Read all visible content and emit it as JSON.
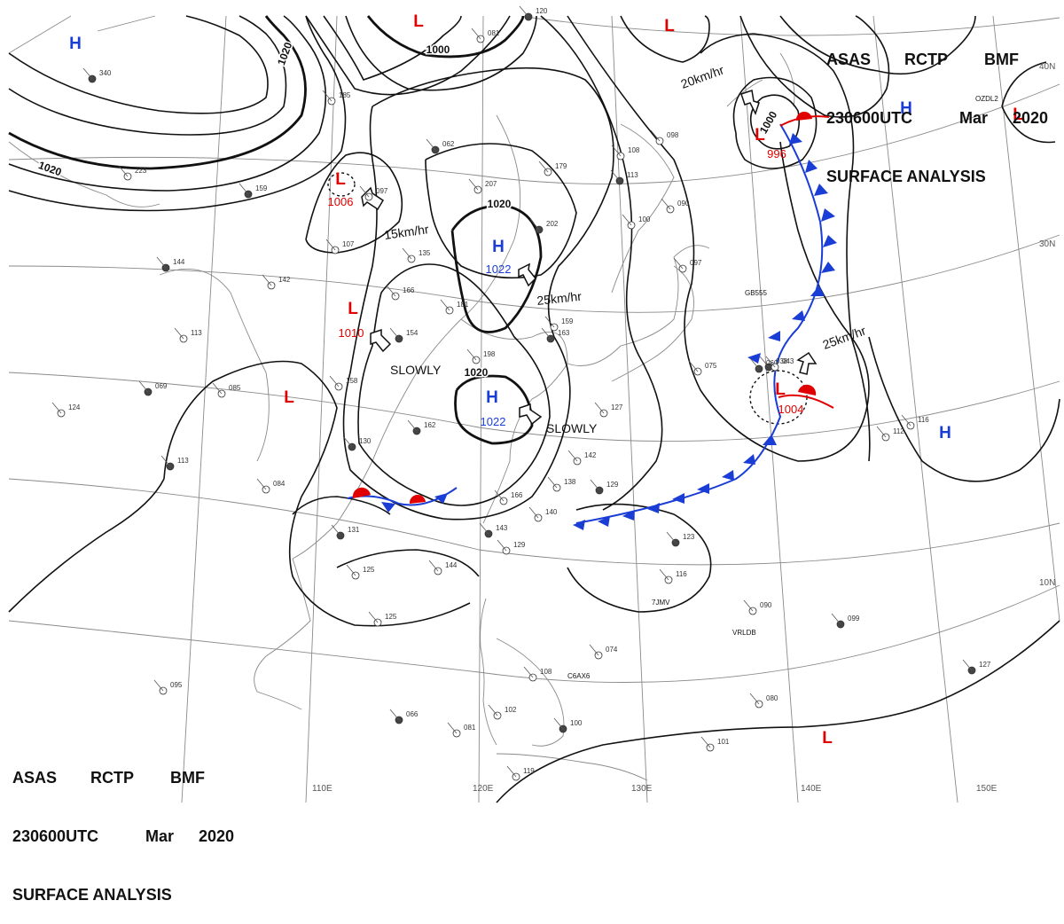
{
  "header": {
    "line1": [
      "ASAS",
      "RCTP",
      "BMF"
    ],
    "line2": [
      "230600UTC",
      "Mar",
      "2020"
    ],
    "line3": "SURFACE ANALYSIS"
  },
  "lon_labels": [
    "110E",
    "120E",
    "130E",
    "140E",
    "150E"
  ],
  "lat_labels": [
    "40N",
    "30N",
    "10N"
  ],
  "isobar_labels": [
    "1020",
    "1000",
    "1020",
    "1020",
    "1020",
    "1000"
  ],
  "centers": [
    {
      "type": "H",
      "pressure": "",
      "color": "#1a3dd6"
    },
    {
      "type": "L",
      "pressure": "",
      "color": "#e00000"
    },
    {
      "type": "L",
      "pressure": "",
      "color": "#e00000"
    },
    {
      "type": "H",
      "pressure": "",
      "color": "#1a3dd6"
    },
    {
      "type": "L",
      "pressure": "1006",
      "color": "#e00000"
    },
    {
      "type": "H",
      "pressure": "1022",
      "color": "#1a3dd6"
    },
    {
      "type": "L",
      "pressure": "1010",
      "color": "#e00000"
    },
    {
      "type": "L",
      "pressure": "",
      "color": "#e00000"
    },
    {
      "type": "H",
      "pressure": "1022",
      "color": "#1a3dd6"
    },
    {
      "type": "L",
      "pressure": "996",
      "color": "#e00000"
    },
    {
      "type": "L",
      "pressure": "1004",
      "color": "#e00000"
    },
    {
      "type": "H",
      "pressure": "",
      "color": "#1a3dd6"
    },
    {
      "type": "L",
      "pressure": "",
      "color": "#e00000"
    }
  ],
  "motions": [
    "15km/hr",
    "25km/hr",
    "SLOWLY",
    "SLOWLY",
    "20km/hr",
    "25km/hr"
  ],
  "station_samples": [
    "340",
    "223",
    "185",
    "159",
    "097",
    "107",
    "062",
    "179",
    "207",
    "202",
    "108",
    "098",
    "113",
    "100",
    "090",
    "144",
    "142",
    "113",
    "069",
    "085",
    "124",
    "113",
    "166",
    "135",
    "154",
    "181",
    "159",
    "163",
    "198",
    "158",
    "162",
    "127",
    "075",
    "038",
    "116",
    "084",
    "130",
    "142",
    "166",
    "129",
    "138",
    "140",
    "131",
    "125",
    "125",
    "143",
    "129",
    "144",
    "123",
    "116",
    "090",
    "099",
    "074",
    "108",
    "127",
    "080",
    "095",
    "066",
    "081",
    "102",
    "100",
    "101",
    "119",
    "120",
    "081",
    "097",
    "060",
    "043",
    "112"
  ],
  "station_ids": [
    "GB555",
    "7JMV",
    "VRLDB",
    "C6AX6",
    "OZDL2"
  ],
  "colors": {
    "high": "#1a3dd6",
    "low": "#e00000",
    "cold_front": "#1a3dd6",
    "warm_front": "#e00000",
    "isobar": "#111111",
    "grid": "#8a8a8a",
    "coast": "#8a8a8a"
  }
}
